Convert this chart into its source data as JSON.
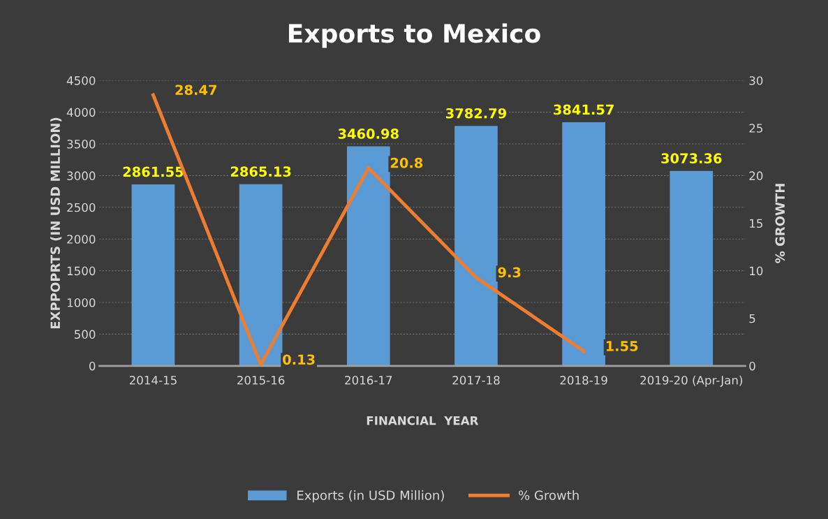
{
  "chart_data": {
    "type": "bar",
    "title": "Exports to Mexico",
    "xlabel": "FINANCIAL  YEAR",
    "ylabel": "EXPPOPRTS (IN USD MILLION)",
    "y2label": "% GROWTH",
    "categories": [
      "2014-15",
      "2015-16",
      "2016-17",
      "2017-18",
      "2018-19",
      "2019-20 (Apr-Jan)"
    ],
    "series": [
      {
        "name": "Exports (in USD Million)",
        "color": "#5b9bd5",
        "values": [
          2861.55,
          2865.13,
          3460.98,
          3782.79,
          3841.57,
          3073.36
        ]
      },
      {
        "name": "% Growth",
        "type": "line",
        "axis": "y2",
        "color": "#ed7d31",
        "values": [
          28.47,
          0.13,
          20.8,
          9.3,
          1.55,
          null
        ]
      }
    ],
    "data_labels": true,
    "ylim": [
      0,
      4500
    ],
    "yticks": [
      0,
      500,
      1000,
      1500,
      2000,
      2500,
      3000,
      3500,
      4000,
      4500
    ],
    "y2lim": [
      0,
      30
    ],
    "y2ticks": [
      0,
      5,
      10,
      15,
      20,
      25,
      30
    ],
    "grid": "y",
    "legend": "bottom",
    "marker": "none",
    "line_style": "solid"
  }
}
